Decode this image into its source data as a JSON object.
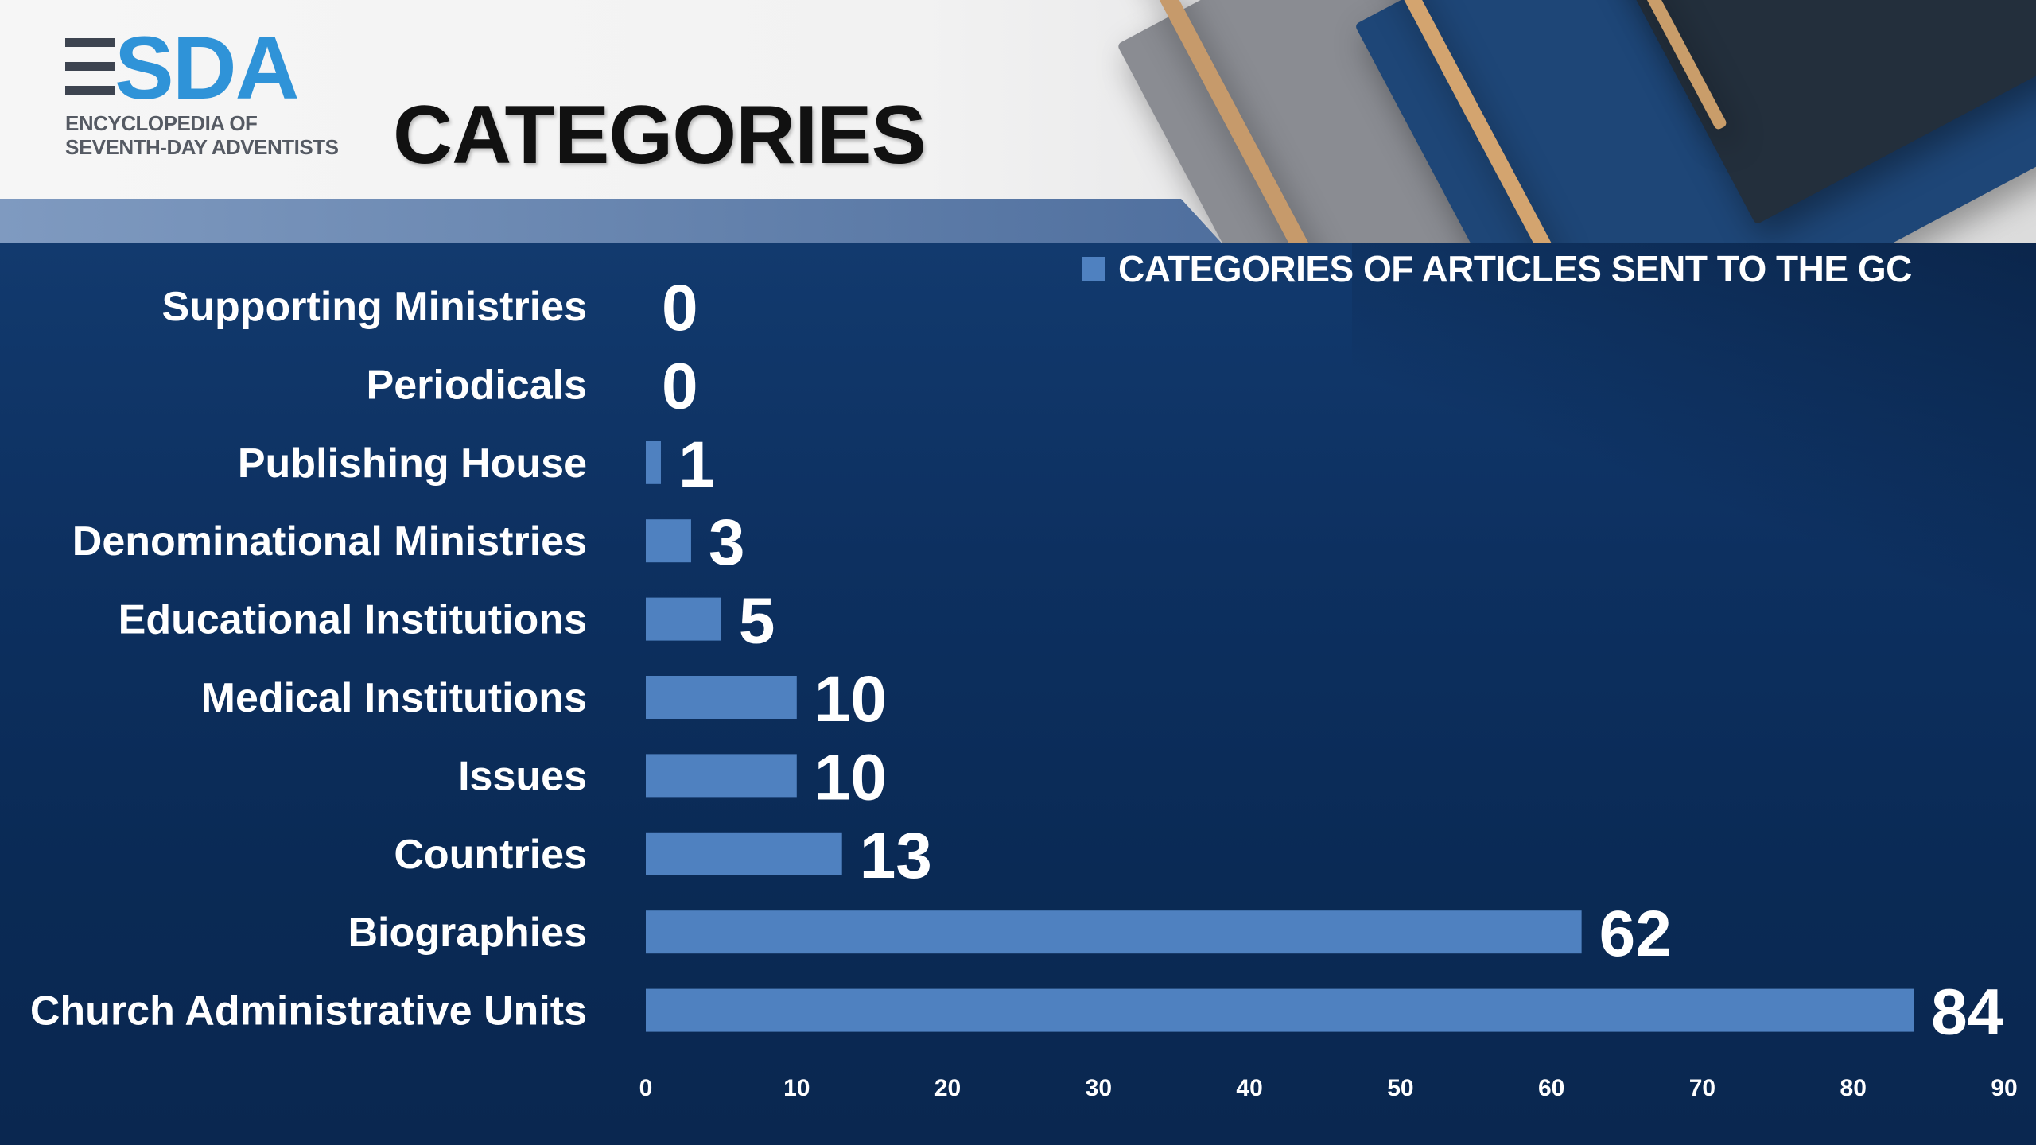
{
  "logo": {
    "wordmark": "SDA",
    "subtitle_line1": "ENCYCLOPEDIA OF",
    "subtitle_line2": "SEVENTH-DAY ADVENTISTS"
  },
  "page": {
    "title": "CATEGORIES"
  },
  "colors": {
    "bar": "#4f81c0",
    "panel": "#0d3060",
    "wordmark": "#2f93d8"
  },
  "chart_data": {
    "type": "bar",
    "orientation": "horizontal",
    "categories": [
      "Supporting Ministries",
      "Periodicals",
      "Publishing House",
      "Denominational Ministries",
      "Educational Institutions",
      "Medical Institutions",
      "Issues",
      "Countries",
      "Biographies",
      "Church Administrative Units"
    ],
    "series": [
      {
        "name": "CATEGORIES OF ARTICLES SENT TO THE GC",
        "values": [
          0,
          0,
          1,
          3,
          5,
          10,
          10,
          13,
          62,
          84
        ]
      }
    ],
    "xlim": [
      0,
      90
    ],
    "xticks": [
      "0",
      "10",
      "20",
      "30",
      "40",
      "50",
      "60",
      "70",
      "80",
      "90"
    ],
    "legend": "top-right",
    "grid": false,
    "data_labels": true
  }
}
